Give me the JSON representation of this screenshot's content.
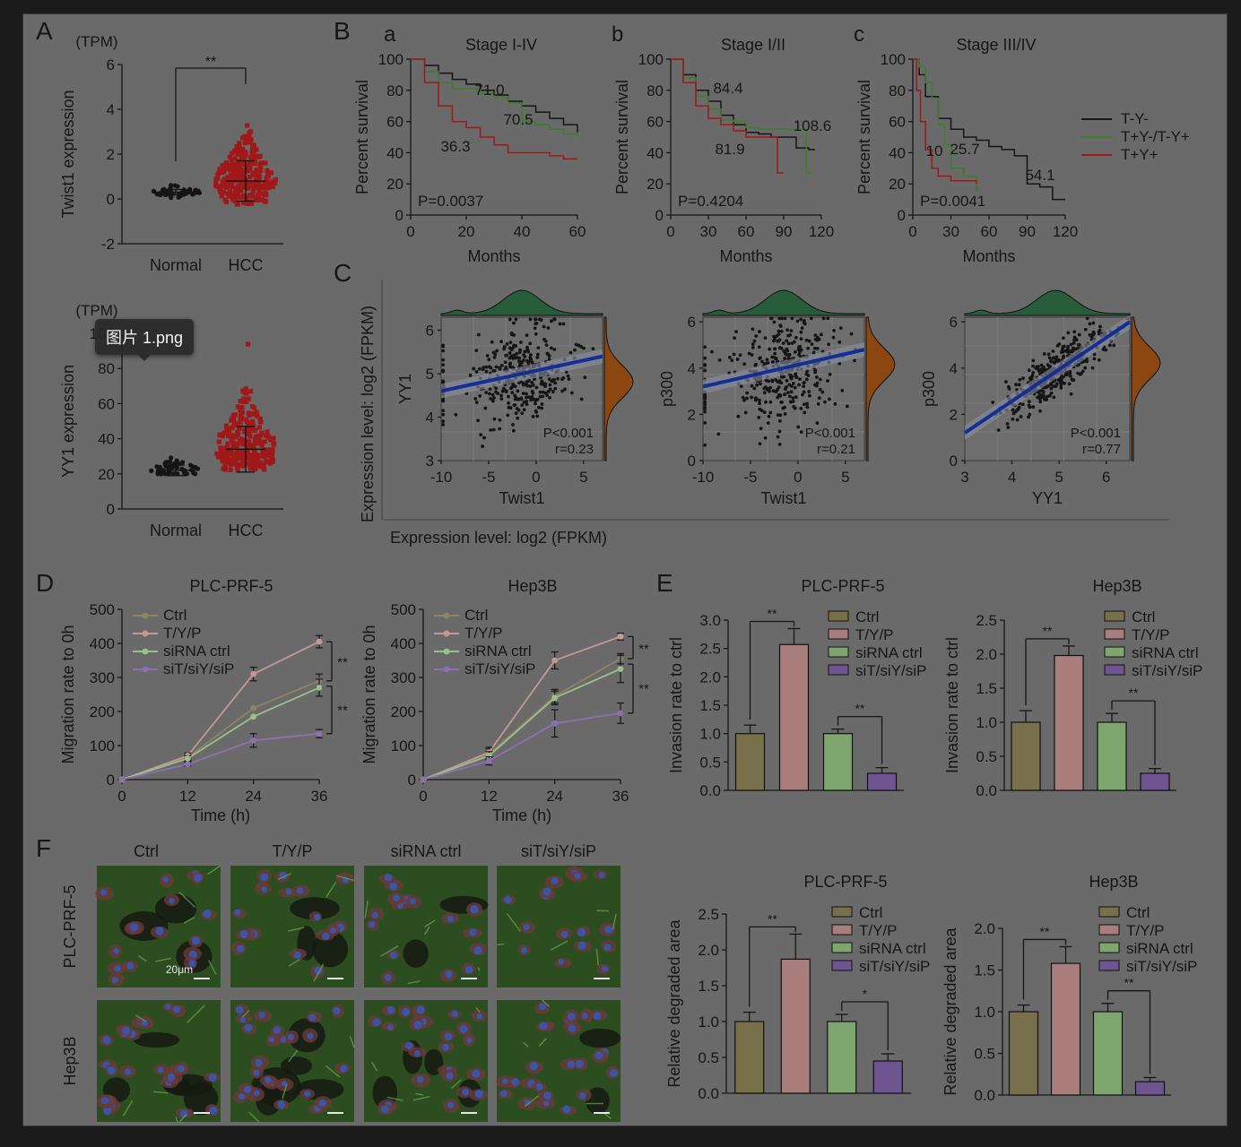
{
  "viewer": {
    "tooltip": "图片 1.png"
  },
  "panel_letters": [
    "A",
    "B",
    "C",
    "D",
    "E",
    "F"
  ],
  "sub_letters": [
    "a",
    "b",
    "c"
  ],
  "colors": {
    "black": "#151515",
    "green": "#3e7d2a",
    "red": "#a01818",
    "blue": "#142f94",
    "dens_green": "#285d3c",
    "dens_orange": "#8c4711",
    "bar_olive": "#77704a",
    "bar_pink": "#a87d7b",
    "bar_green": "#7fa66f",
    "bar_purple": "#6e5592"
  },
  "A": {
    "twist": {
      "unit": "(TPM)",
      "ylabel": "Twist1 expression",
      "yticks": [
        "6",
        "4",
        "2",
        "0",
        "-2"
      ],
      "cats": [
        "Normal",
        "HCC"
      ],
      "sig": "**"
    },
    "yy1": {
      "unit": "(TPM)",
      "ylabel": "YY1 expression",
      "yticks": [
        "100",
        "80",
        "60",
        "40",
        "20",
        "0"
      ],
      "cats": [
        "Normal",
        "HCC"
      ]
    }
  },
  "B": {
    "ylabel": "Percent survival",
    "xlabel": "Months",
    "yticks": [
      "100",
      "80",
      "60",
      "40",
      "20",
      "0"
    ],
    "legend": [
      "T-Y-",
      "T+Y-/T-Y+",
      "T+Y+"
    ],
    "panels": [
      {
        "title": "Stage I-IV",
        "xticks": [
          "0",
          "20",
          "40",
          "60"
        ],
        "p": "P=0.0037",
        "labels": [
          "71.0",
          "70.5",
          "36.3"
        ]
      },
      {
        "title": "Stage I/II",
        "xticks": [
          "0",
          "30",
          "60",
          "90",
          "120"
        ],
        "p": "P=0.4204",
        "labels": [
          "84.4",
          "108.6",
          "81.9"
        ]
      },
      {
        "title": "Stage III/IV",
        "xticks": [
          "0",
          "30",
          "60",
          "90",
          "120"
        ],
        "p": "P=0.0041",
        "labels": [
          "10",
          "25.7",
          "54.1"
        ]
      }
    ]
  },
  "C": {
    "ylabel": "Expression level: log2 (FPKM)",
    "xlabel": "Expression level: log2 (FPKM)",
    "panels": [
      {
        "x": "Twist1",
        "y": "YY1",
        "xticks": [
          "-10",
          "-5",
          "0",
          "5"
        ],
        "yticks": [
          "6",
          "5",
          "4",
          "3"
        ],
        "p": "P<0.001",
        "r": "r=0.23"
      },
      {
        "x": "Twist1",
        "y": "p300",
        "xticks": [
          "-10",
          "-5",
          "0",
          "5"
        ],
        "yticks": [
          "6",
          "4",
          "2",
          "0"
        ],
        "p": "P<0.001",
        "r": "r=0.21"
      },
      {
        "x": "YY1",
        "y": "p300",
        "xticks": [
          "3",
          "4",
          "5",
          "6"
        ],
        "yticks": [
          "6",
          "4",
          "2",
          "0"
        ],
        "p": "P<0.001",
        "r": "r=0.77"
      }
    ]
  },
  "D": {
    "ylabel": "Migration rate to 0h",
    "xlabel": "Time (h)",
    "yticks": [
      "500",
      "400",
      "300",
      "200",
      "100",
      "0"
    ],
    "xticks": [
      "0",
      "12",
      "24",
      "36"
    ],
    "legend": [
      "Ctrl",
      "T/Y/P",
      "siRNA ctrl",
      "siT/siY/siP"
    ],
    "sig": "**",
    "panels": [
      {
        "title": "PLC-PRF-5"
      },
      {
        "title": "Hep3B"
      }
    ]
  },
  "E": {
    "ylabel": "Invasion rate to ctrl",
    "legend": [
      "Ctrl",
      "T/Y/P",
      "siRNA ctrl",
      "siT/siY/siP"
    ],
    "sig": "**",
    "panels": [
      {
        "title": "PLC-PRF-5",
        "yticks": [
          "3.0",
          "2.5",
          "2.0",
          "1.5",
          "1.0",
          "0.5",
          "0.0"
        ]
      },
      {
        "title": "Hep3B",
        "yticks": [
          "2.5",
          "2.0",
          "1.5",
          "1.0",
          "0.5",
          "0.0"
        ]
      }
    ]
  },
  "F": {
    "cols": [
      "Ctrl",
      "T/Y/P",
      "siRNA ctrl",
      "siT/siY/siP"
    ],
    "rows": [
      "PLC-PRF-5",
      "Hep3B"
    ],
    "scale": "20μm",
    "ylabel": "Relative degraded area",
    "legend": [
      "Ctrl",
      "T/Y/P",
      "siRNA ctrl",
      "siT/siY/siP"
    ],
    "panels": [
      {
        "title": "PLC-PRF-5",
        "yticks": [
          "2.5",
          "2.0",
          "1.5",
          "1.0",
          "0.5",
          "0.0"
        ],
        "sig": [
          "**",
          "*"
        ]
      },
      {
        "title": "Hep3B",
        "yticks": [
          "2.0",
          "1.5",
          "1.0",
          "0.5",
          "0.0"
        ],
        "sig": [
          "**",
          "**"
        ]
      }
    ]
  },
  "chart_data": [
    {
      "type": "scatter",
      "id": "A-Twist1",
      "categories": [
        "Normal",
        "HCC"
      ],
      "ylabel": "Twist1 expression",
      "ylim": [
        -2,
        6
      ],
      "series": [
        {
          "name": "Normal",
          "mean": 0.3,
          "sd": 0.12
        },
        {
          "name": "HCC",
          "mean": 0.8,
          "sd": 0.9
        }
      ]
    },
    {
      "type": "scatter",
      "id": "A-YY1",
      "categories": [
        "Normal",
        "HCC"
      ],
      "ylabel": "YY1 expression",
      "ylim": [
        0,
        100
      ],
      "series": [
        {
          "name": "Normal",
          "mean": 22,
          "sd": 3
        },
        {
          "name": "HCC",
          "mean": 34,
          "sd": 13
        }
      ]
    },
    {
      "type": "line",
      "id": "B-a",
      "title": "Stage I-IV",
      "xlabel": "Months",
      "ylabel": "Percent survival",
      "xlim": [
        0,
        60
      ],
      "ylim": [
        0,
        100
      ],
      "series": [
        {
          "name": "T-Y-",
          "x": [
            0,
            5,
            10,
            15,
            20,
            25,
            30,
            35,
            40,
            45,
            50,
            55,
            60
          ],
          "y": [
            100,
            96,
            91,
            87,
            84,
            80,
            77,
            73,
            70,
            66,
            62,
            58,
            53
          ]
        },
        {
          "name": "T+Y-/T-Y+",
          "x": [
            0,
            5,
            10,
            15,
            20,
            25,
            30,
            35,
            40,
            45,
            50,
            55,
            60
          ],
          "y": [
            100,
            92,
            85,
            81,
            81,
            78,
            76,
            72,
            60,
            58,
            55,
            52,
            50
          ]
        },
        {
          "name": "T+Y+",
          "x": [
            0,
            5,
            10,
            15,
            20,
            25,
            30,
            35,
            40,
            45,
            50,
            55,
            60
          ],
          "y": [
            100,
            85,
            70,
            60,
            56,
            50,
            45,
            40,
            40,
            40,
            38,
            36,
            36
          ]
        }
      ]
    },
    {
      "type": "line",
      "id": "B-b",
      "title": "Stage I/II",
      "xlabel": "Months",
      "ylabel": "Percent survival",
      "xlim": [
        0,
        120
      ],
      "ylim": [
        0,
        100
      ],
      "series": [
        {
          "name": "T-Y-",
          "x": [
            0,
            10,
            20,
            30,
            40,
            50,
            60,
            70,
            80,
            90,
            100,
            110,
            115
          ],
          "y": [
            100,
            90,
            80,
            73,
            64,
            58,
            53,
            52,
            50,
            50,
            43,
            42,
            42
          ]
        },
        {
          "name": "T+Y-/T-Y+",
          "x": [
            0,
            10,
            20,
            30,
            40,
            50,
            60,
            70,
            80,
            90,
            100,
            108,
            112
          ],
          "y": [
            100,
            88,
            76,
            68,
            61,
            60,
            56,
            55,
            55,
            55,
            55,
            27,
            27
          ]
        },
        {
          "name": "T+Y+",
          "x": [
            0,
            10,
            20,
            30,
            40,
            50,
            60,
            70,
            80,
            85,
            90
          ],
          "y": [
            100,
            85,
            70,
            62,
            58,
            54,
            50,
            50,
            50,
            27,
            27
          ]
        }
      ]
    },
    {
      "type": "line",
      "id": "B-c",
      "title": "Stage III/IV",
      "xlabel": "Months",
      "ylabel": "Percent survival",
      "xlim": [
        0,
        120
      ],
      "ylim": [
        0,
        100
      ],
      "series": [
        {
          "name": "T-Y-",
          "x": [
            0,
            5,
            10,
            20,
            30,
            40,
            50,
            60,
            70,
            80,
            90,
            100,
            110,
            120
          ],
          "y": [
            100,
            90,
            76,
            62,
            55,
            50,
            48,
            44,
            42,
            38,
            20,
            18,
            10,
            10
          ]
        },
        {
          "name": "T+Y-/T-Y+",
          "x": [
            0,
            5,
            10,
            15,
            20,
            25,
            30,
            40,
            50
          ],
          "y": [
            100,
            95,
            85,
            75,
            58,
            45,
            30,
            25,
            15
          ]
        },
        {
          "name": "T+Y+",
          "x": [
            0,
            3,
            6,
            10,
            15,
            20,
            30,
            40,
            50
          ],
          "y": [
            100,
            80,
            60,
            42,
            30,
            25,
            22,
            22,
            20
          ]
        }
      ]
    },
    {
      "type": "scatter",
      "id": "C-1",
      "xlabel": "Twist1",
      "ylabel": "YY1",
      "xlim": [
        -10,
        7
      ],
      "ylim": [
        3,
        6.3
      ],
      "fit": {
        "x": [
          -10,
          7
        ],
        "y": [
          4.6,
          5.4
        ]
      },
      "p": "P<0.001",
      "r": 0.23
    },
    {
      "type": "scatter",
      "id": "C-2",
      "xlabel": "Twist1",
      "ylabel": "p300",
      "xlim": [
        -10,
        7
      ],
      "ylim": [
        0,
        6.2
      ],
      "fit": {
        "x": [
          -10,
          7
        ],
        "y": [
          3.2,
          4.8
        ]
      },
      "p": "P<0.001",
      "r": 0.21
    },
    {
      "type": "scatter",
      "id": "C-3",
      "xlabel": "YY1",
      "ylabel": "p300",
      "xlim": [
        3,
        6.5
      ],
      "ylim": [
        0,
        6.2
      ],
      "fit": {
        "x": [
          3,
          6.5
        ],
        "y": [
          1.2,
          6
        ]
      },
      "p": "P<0.001",
      "r": 0.77
    },
    {
      "type": "line",
      "id": "D-PLC",
      "title": "PLC-PRF-5",
      "xlabel": "Time (h)",
      "ylabel": "Migration rate to 0h",
      "x": [
        0,
        12,
        24,
        36
      ],
      "ylim": [
        0,
        500
      ],
      "series": [
        {
          "name": "Ctrl",
          "y": [
            0,
            65,
            210,
            290
          ],
          "err": [
            0,
            8,
            0,
            20
          ]
        },
        {
          "name": "T/Y/P",
          "y": [
            0,
            70,
            310,
            405
          ],
          "err": [
            0,
            8,
            20,
            18
          ]
        },
        {
          "name": "siRNA ctrl",
          "y": [
            0,
            62,
            185,
            270
          ],
          "err": [
            0,
            8,
            0,
            25
          ]
        },
        {
          "name": "siT/siY/siP",
          "y": [
            0,
            45,
            115,
            135
          ],
          "err": [
            0,
            5,
            20,
            12
          ]
        }
      ]
    },
    {
      "type": "line",
      "id": "D-Hep3B",
      "title": "Hep3B",
      "xlabel": "Time (h)",
      "ylabel": "Migration rate to 0h",
      "x": [
        0,
        12,
        24,
        36
      ],
      "ylim": [
        0,
        500
      ],
      "series": [
        {
          "name": "Ctrl",
          "y": [
            0,
            75,
            245,
            355
          ],
          "err": [
            0,
            15,
            20,
            15
          ]
        },
        {
          "name": "T/Y/P",
          "y": [
            0,
            80,
            350,
            420
          ],
          "err": [
            0,
            15,
            25,
            10
          ]
        },
        {
          "name": "siRNA ctrl",
          "y": [
            0,
            70,
            240,
            325
          ],
          "err": [
            0,
            12,
            20,
            40
          ]
        },
        {
          "name": "siT/siY/siP",
          "y": [
            0,
            55,
            165,
            195
          ],
          "err": [
            0,
            12,
            40,
            30
          ]
        }
      ]
    },
    {
      "type": "bar",
      "id": "E-PLC",
      "title": "PLC-PRF-5",
      "ylabel": "Invasion rate to ctrl",
      "categories": [
        "Ctrl",
        "T/Y/P",
        "siRNA ctrl",
        "siT/siY/siP"
      ],
      "values": [
        1.0,
        2.57,
        1.0,
        0.3
      ],
      "err": [
        0.15,
        0.28,
        0.08,
        0.1
      ],
      "ylim": [
        0,
        3.0
      ]
    },
    {
      "type": "bar",
      "id": "E-Hep3B",
      "title": "Hep3B",
      "ylabel": "Invasion rate to ctrl",
      "categories": [
        "Ctrl",
        "T/Y/P",
        "siRNA ctrl",
        "siT/siY/siP"
      ],
      "values": [
        1.0,
        1.98,
        1.0,
        0.25
      ],
      "err": [
        0.17,
        0.14,
        0.13,
        0.07
      ],
      "ylim": [
        0,
        2.5
      ]
    },
    {
      "type": "bar",
      "id": "F-PLC",
      "title": "PLC-PRF-5",
      "ylabel": "Relative degraded area",
      "categories": [
        "Ctrl",
        "T/Y/P",
        "siRNA ctrl",
        "siT/siY/siP"
      ],
      "values": [
        1.0,
        1.87,
        1.0,
        0.45
      ],
      "err": [
        0.13,
        0.35,
        0.1,
        0.1
      ],
      "ylim": [
        0,
        2.5
      ]
    },
    {
      "type": "bar",
      "id": "F-Hep3B",
      "title": "Hep3B",
      "ylabel": "Relative degraded area",
      "categories": [
        "Ctrl",
        "T/Y/P",
        "siRNA ctrl",
        "siT/siY/siP"
      ],
      "values": [
        1.0,
        1.58,
        1.0,
        0.16
      ],
      "err": [
        0.08,
        0.2,
        0.1,
        0.05
      ],
      "ylim": [
        0,
        2.0
      ]
    }
  ]
}
